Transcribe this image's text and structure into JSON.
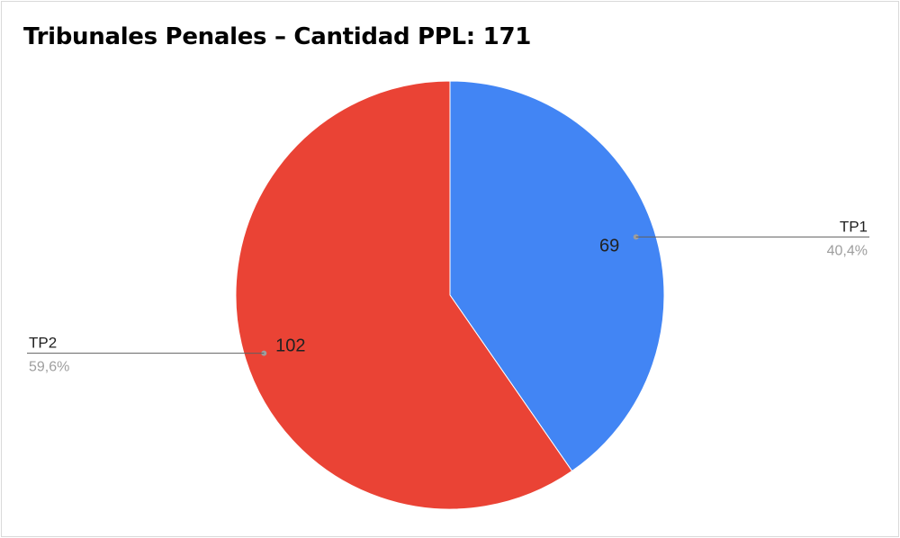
{
  "chart_data": {
    "type": "pie",
    "title": "Tribunales Penales – Cantidad PPL: 171",
    "slices": [
      {
        "label": "TP1",
        "value": 69,
        "value_label": "69",
        "percent_label": "40,4%",
        "color": "#4285f4"
      },
      {
        "label": "TP2",
        "value": 102,
        "value_label": "102",
        "percent_label": "59,6%",
        "color": "#ea4335"
      }
    ],
    "start_angle": "12 o'clock",
    "direction": "clockwise",
    "legend": "none",
    "label_style": "outside labels with leader lines"
  }
}
